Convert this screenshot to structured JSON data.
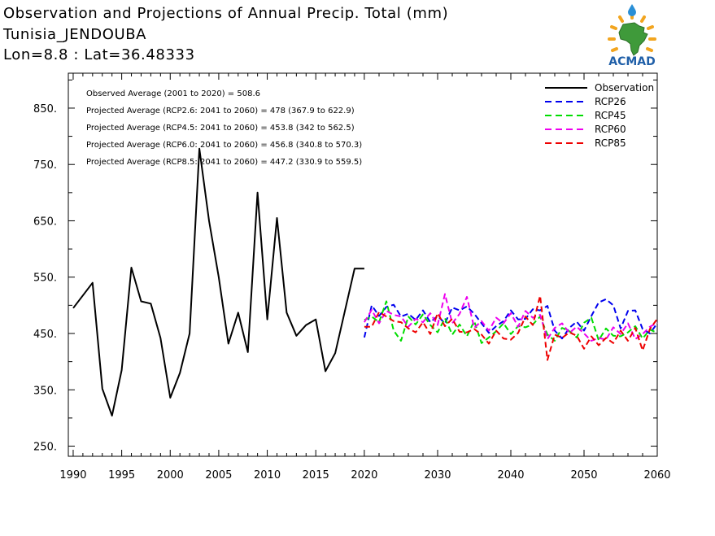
{
  "header": {
    "title": "Observation and Projections of Annual Precip. Total (mm)",
    "location": "Tunisia_JENDOUBA",
    "coords": "Lon=8.8 : Lat=36.48333"
  },
  "logo": {
    "text": "ACMAD",
    "colors": {
      "text": "#1f5fa8",
      "africa": "#3f9a3a",
      "sun": "#f2a51f",
      "drop": "#2a8fd6"
    }
  },
  "annotations": [
    "Observed Average (2001 to 2020) = 508.6",
    "Projected Average (RCP2.6: 2041 to 2060) = 478 (367.9 to 622.9)",
    "Projected Average (RCP4.5: 2041 to 2060) = 453.8 (342 to 562.5)",
    "Projected Average (RCP6.0: 2041 to 2060) = 456.8 (340.8 to 570.3)",
    "Projected Average (RCP8.5: 2041 to 2060) = 447.2 (330.9 to 559.5)"
  ],
  "chart_data": {
    "type": "line",
    "title": "Observation and Projections of Annual Precip. Total (mm)",
    "ylim": [
      232,
      912
    ],
    "yticks": [
      250,
      350,
      450,
      550,
      650,
      750,
      850
    ],
    "ytick_labels": [
      "250.",
      "350.",
      "450.",
      "550.",
      "650.",
      "750.",
      "850."
    ],
    "xticks": [
      1990,
      1995,
      2000,
      2005,
      2010,
      2015,
      2020,
      2030,
      2040,
      2050,
      2060
    ],
    "xtick_labels": [
      "1990",
      "1995",
      "2000",
      "2005",
      "2010",
      "2015",
      "2020",
      "2030",
      "2040",
      "2050",
      "2060"
    ],
    "legend_position": "top-right",
    "series": [
      {
        "name": "Observation",
        "color": "#000000",
        "dash": "solid",
        "x": [
          1990,
          1992,
          1993,
          1994,
          1995,
          1996,
          1997,
          1998,
          1999,
          2000,
          2001,
          2002,
          2003,
          2004,
          2005,
          2006,
          2007,
          2008,
          2009,
          2010,
          2011,
          2012,
          2013,
          2014,
          2015,
          2016,
          2017,
          2018,
          2019,
          2020
        ],
        "y": [
          495,
          540,
          352,
          304,
          385,
          567,
          507,
          503,
          442,
          336,
          380,
          450,
          778,
          650,
          550,
          432,
          487,
          417,
          700,
          475,
          655,
          487,
          446,
          465,
          475,
          383,
          415,
          490,
          565,
          565
        ]
      },
      {
        "name": "RCP26",
        "color": "#0000ee",
        "dash": "dashed",
        "x": [
          2020,
          2021,
          2022,
          2023,
          2024,
          2025,
          2026,
          2027,
          2028,
          2029,
          2030,
          2031,
          2032,
          2033,
          2034,
          2035,
          2036,
          2037,
          2038,
          2039,
          2040,
          2041,
          2042,
          2043,
          2044,
          2045,
          2046,
          2047,
          2048,
          2049,
          2050,
          2051,
          2052,
          2053,
          2054,
          2055,
          2056,
          2057,
          2058,
          2059,
          2060
        ],
        "y": [
          443,
          500,
          481,
          497,
          501,
          480,
          485,
          474,
          491,
          470,
          481,
          468,
          496,
          491,
          498,
          485,
          468,
          451,
          463,
          472,
          491,
          475,
          476,
          493,
          491,
          499,
          455,
          441,
          460,
          471,
          455,
          481,
          505,
          511,
          500,
          459,
          490,
          491,
          458,
          450,
          468
        ]
      },
      {
        "name": "RCP45",
        "color": "#00dd00",
        "dash": "dashed",
        "x": [
          2020,
          2021,
          2022,
          2023,
          2024,
          2025,
          2026,
          2027,
          2028,
          2029,
          2030,
          2031,
          2032,
          2033,
          2034,
          2035,
          2036,
          2037,
          2038,
          2039,
          2040,
          2041,
          2042,
          2043,
          2044,
          2045,
          2046,
          2047,
          2048,
          2049,
          2050,
          2051,
          2052,
          2053,
          2054,
          2055,
          2056,
          2057,
          2058,
          2059,
          2060
        ],
        "y": [
          474,
          480,
          470,
          507,
          455,
          437,
          480,
          466,
          484,
          465,
          452,
          477,
          448,
          466,
          445,
          472,
          433,
          443,
          454,
          468,
          449,
          463,
          461,
          466,
          480,
          448,
          437,
          460,
          454,
          443,
          469,
          478,
          438,
          459,
          446,
          445,
          452,
          463,
          441,
          457,
          451
        ]
      },
      {
        "name": "RCP60",
        "color": "#ee00ee",
        "dash": "dashed",
        "x": [
          2020,
          2021,
          2022,
          2023,
          2024,
          2025,
          2026,
          2027,
          2028,
          2029,
          2030,
          2031,
          2032,
          2033,
          2034,
          2035,
          2036,
          2037,
          2038,
          2039,
          2040,
          2041,
          2042,
          2043,
          2044,
          2045,
          2046,
          2047,
          2048,
          2049,
          2050,
          2051,
          2052,
          2053,
          2054,
          2055,
          2056,
          2057,
          2058,
          2059,
          2060
        ],
        "y": [
          470,
          492,
          468,
          490,
          483,
          480,
          462,
          476,
          470,
          486,
          465,
          520,
          468,
          485,
          515,
          460,
          472,
          455,
          478,
          468,
          486,
          462,
          490,
          478,
          483,
          440,
          460,
          468,
          451,
          462,
          450,
          437,
          442,
          439,
          461,
          449,
          468,
          440,
          449,
          462,
          469
        ]
      },
      {
        "name": "RCP85",
        "color": "#ee0000",
        "dash": "dashed",
        "x": [
          2020,
          2021,
          2022,
          2023,
          2024,
          2025,
          2026,
          2027,
          2028,
          2029,
          2030,
          2031,
          2032,
          2033,
          2034,
          2035,
          2036,
          2037,
          2038,
          2039,
          2040,
          2041,
          2042,
          2043,
          2044,
          2045,
          2046,
          2047,
          2048,
          2049,
          2050,
          2051,
          2052,
          2053,
          2054,
          2055,
          2056,
          2057,
          2058,
          2059,
          2060
        ],
        "y": [
          462,
          462,
          488,
          480,
          472,
          470,
          459,
          452,
          470,
          449,
          486,
          463,
          476,
          453,
          452,
          458,
          448,
          432,
          455,
          441,
          439,
          451,
          480,
          465,
          517,
          403,
          448,
          442,
          452,
          446,
          423,
          445,
          429,
          442,
          433,
          455,
          437,
          460,
          420,
          458,
          476
        ]
      }
    ]
  }
}
